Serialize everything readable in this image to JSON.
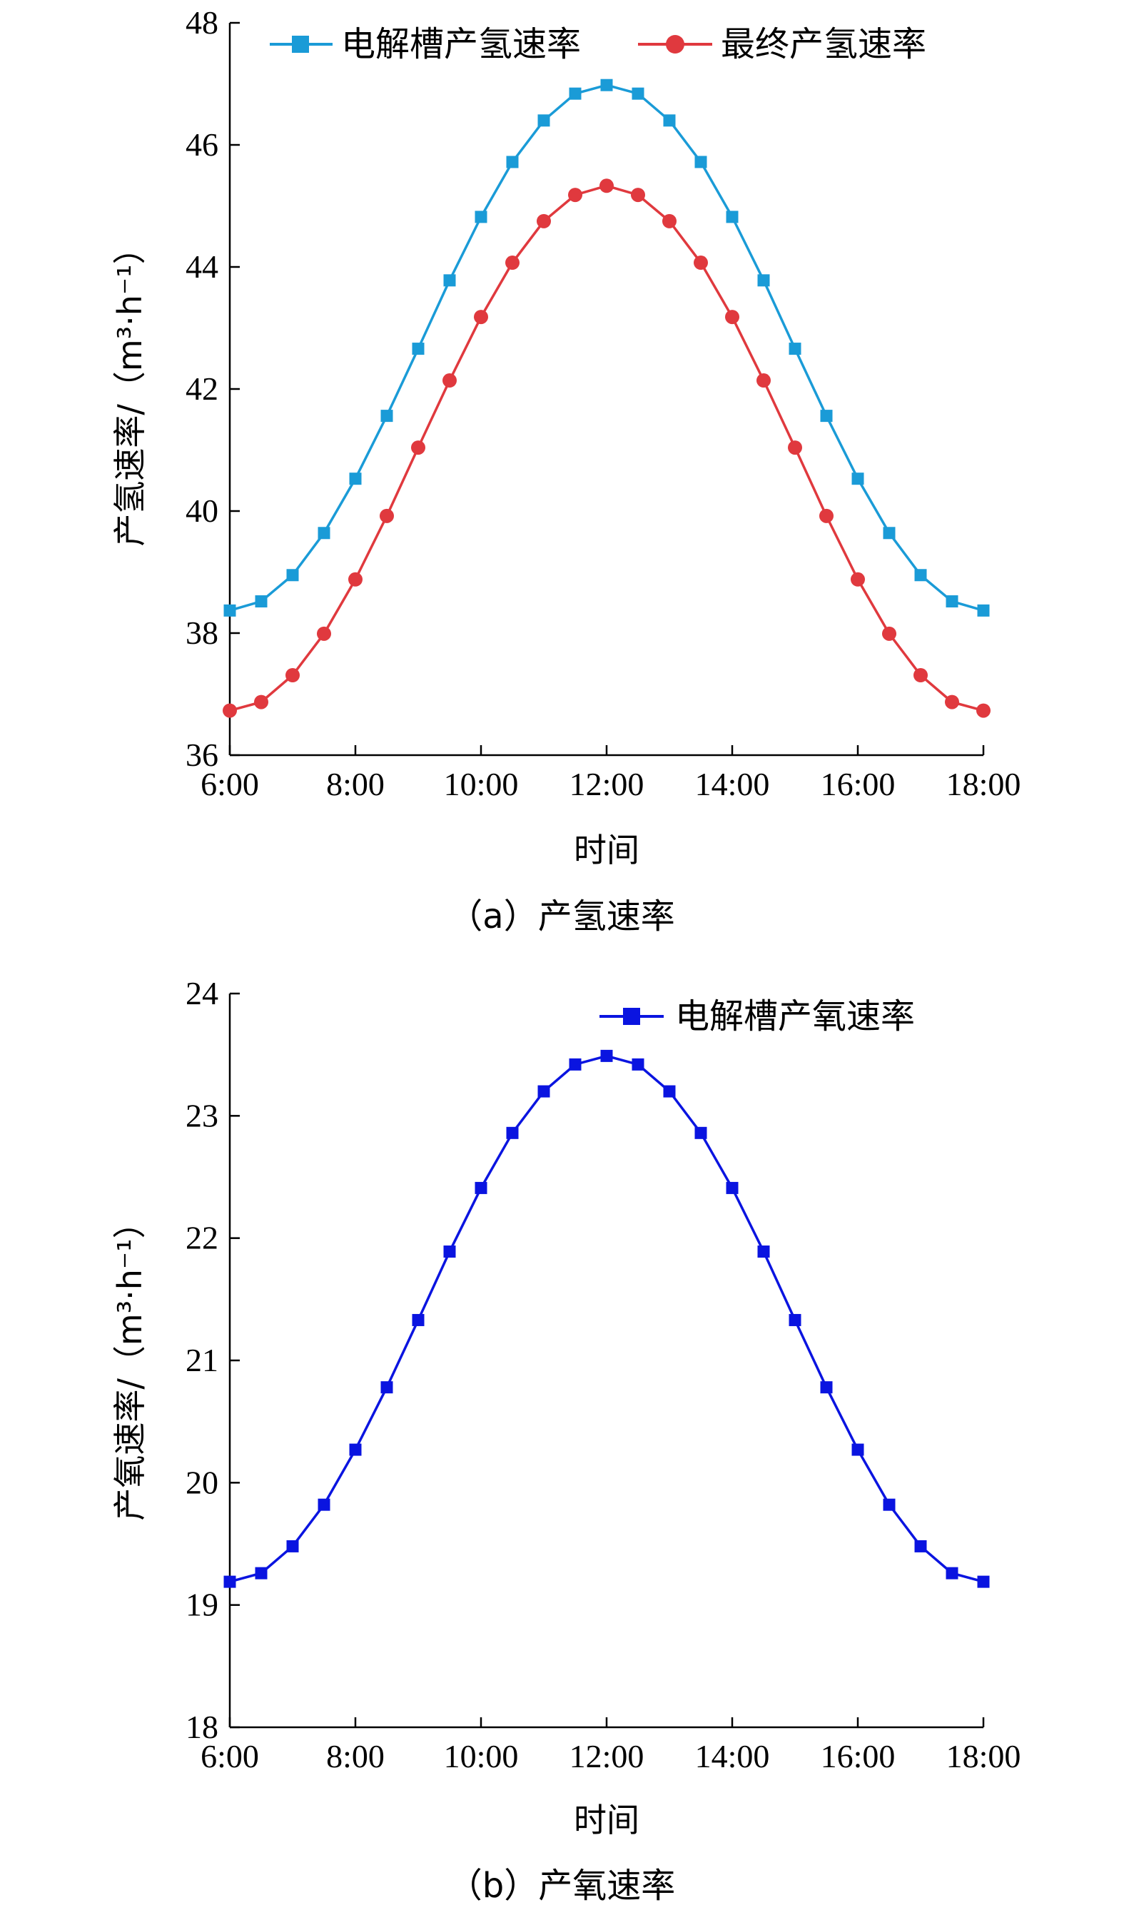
{
  "chart_data": [
    {
      "type": "line",
      "caption": "（a）产氢速率",
      "xlabel": "时间",
      "ylabel": "产氢速率/（m³·h⁻¹）",
      "ylim": [
        36,
        48
      ],
      "yticks": [
        36,
        38,
        40,
        42,
        44,
        46,
        48
      ],
      "xticks": [
        "6:00",
        "8:00",
        "10:00",
        "12:00",
        "14:00",
        "16:00",
        "18:00"
      ],
      "x": [
        "6:00",
        "6:30",
        "7:00",
        "7:30",
        "8:00",
        "8:30",
        "9:00",
        "9:30",
        "10:00",
        "10:30",
        "11:00",
        "11:30",
        "12:00",
        "12:30",
        "13:00",
        "13:30",
        "14:00",
        "14:30",
        "15:00",
        "15:30",
        "16:00",
        "16:30",
        "17:00",
        "17:30",
        "18:00"
      ],
      "legend_position": "top",
      "series": [
        {
          "name": "电解槽产氢速率",
          "color": "#1a9bd7",
          "marker": "square",
          "values": [
            38.37,
            38.52,
            38.95,
            39.64,
            40.53,
            41.56,
            42.66,
            43.78,
            44.82,
            45.72,
            46.4,
            46.84,
            46.98,
            46.84,
            46.4,
            45.72,
            44.82,
            43.78,
            42.66,
            41.56,
            40.53,
            39.64,
            38.95,
            38.52,
            38.37
          ]
        },
        {
          "name": "最终产氢速率",
          "color": "#e0393e",
          "marker": "circle",
          "values": [
            36.73,
            36.87,
            37.31,
            37.99,
            38.88,
            39.92,
            41.04,
            42.14,
            43.18,
            44.07,
            44.75,
            45.18,
            45.33,
            45.18,
            44.75,
            44.07,
            43.18,
            42.14,
            41.04,
            39.92,
            38.88,
            37.99,
            37.31,
            36.87,
            36.73
          ]
        }
      ]
    },
    {
      "type": "line",
      "caption": "（b）产氧速率",
      "xlabel": "时间",
      "ylabel": "产氧速率/（m³·h⁻¹）",
      "ylim": [
        18,
        24
      ],
      "yticks": [
        18,
        19,
        20,
        21,
        22,
        23,
        24
      ],
      "xticks": [
        "6:00",
        "8:00",
        "10:00",
        "12:00",
        "14:00",
        "16:00",
        "18:00"
      ],
      "x": [
        "6:00",
        "6:30",
        "7:00",
        "7:30",
        "8:00",
        "8:30",
        "9:00",
        "9:30",
        "10:00",
        "10:30",
        "11:00",
        "11:30",
        "12:00",
        "12:30",
        "13:00",
        "13:30",
        "14:00",
        "14:30",
        "15:00",
        "15:30",
        "16:00",
        "16:30",
        "17:00",
        "17:30",
        "18:00"
      ],
      "legend_position": "top-right",
      "series": [
        {
          "name": "电解槽产氧速率",
          "color": "#0a14e0",
          "marker": "square",
          "values": [
            19.19,
            19.26,
            19.48,
            19.82,
            20.27,
            20.78,
            21.33,
            21.89,
            22.41,
            22.86,
            23.2,
            23.42,
            23.49,
            23.42,
            23.2,
            22.86,
            22.41,
            21.89,
            21.33,
            20.78,
            20.27,
            19.82,
            19.48,
            19.26,
            19.19
          ]
        }
      ]
    }
  ]
}
